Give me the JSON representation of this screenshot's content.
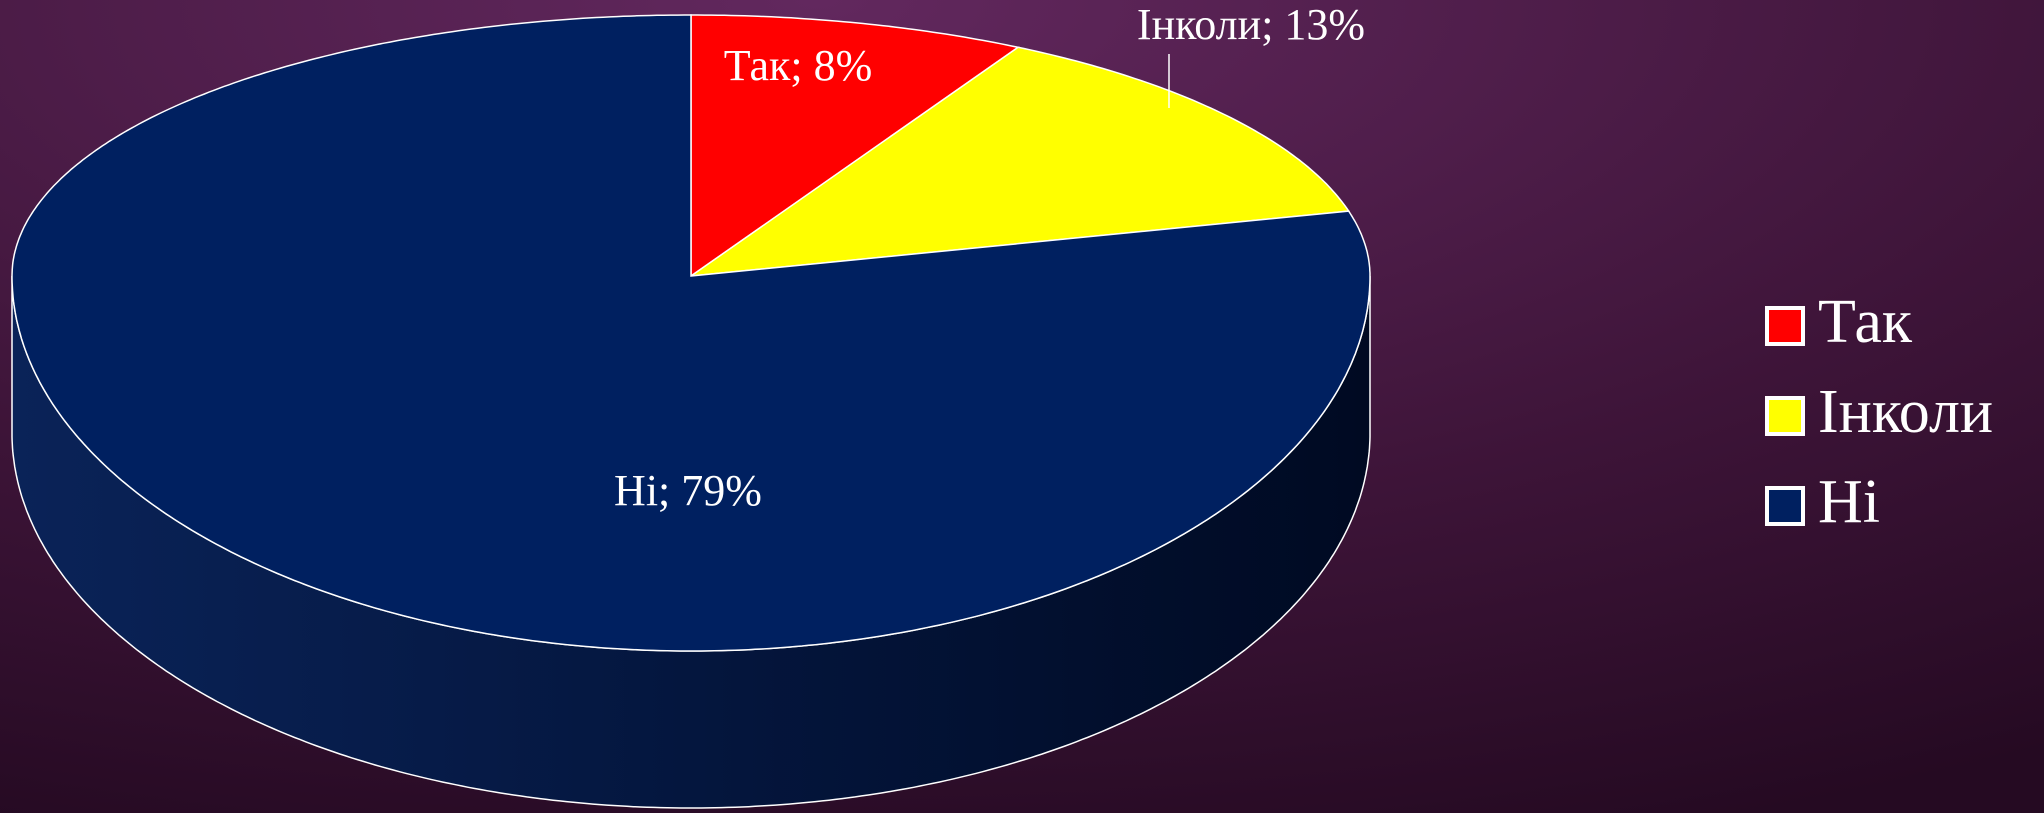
{
  "chart_data": {
    "type": "pie",
    "categories": [
      "Так",
      "Інколи",
      "Ні"
    ],
    "values": [
      8,
      13,
      79
    ],
    "value_labels": [
      "Так; 8%",
      "Інколи; 13%",
      "Ні; 79%"
    ],
    "colors": [
      "#ff0000",
      "#ffff00",
      "#002060"
    ],
    "legend": "right"
  }
}
